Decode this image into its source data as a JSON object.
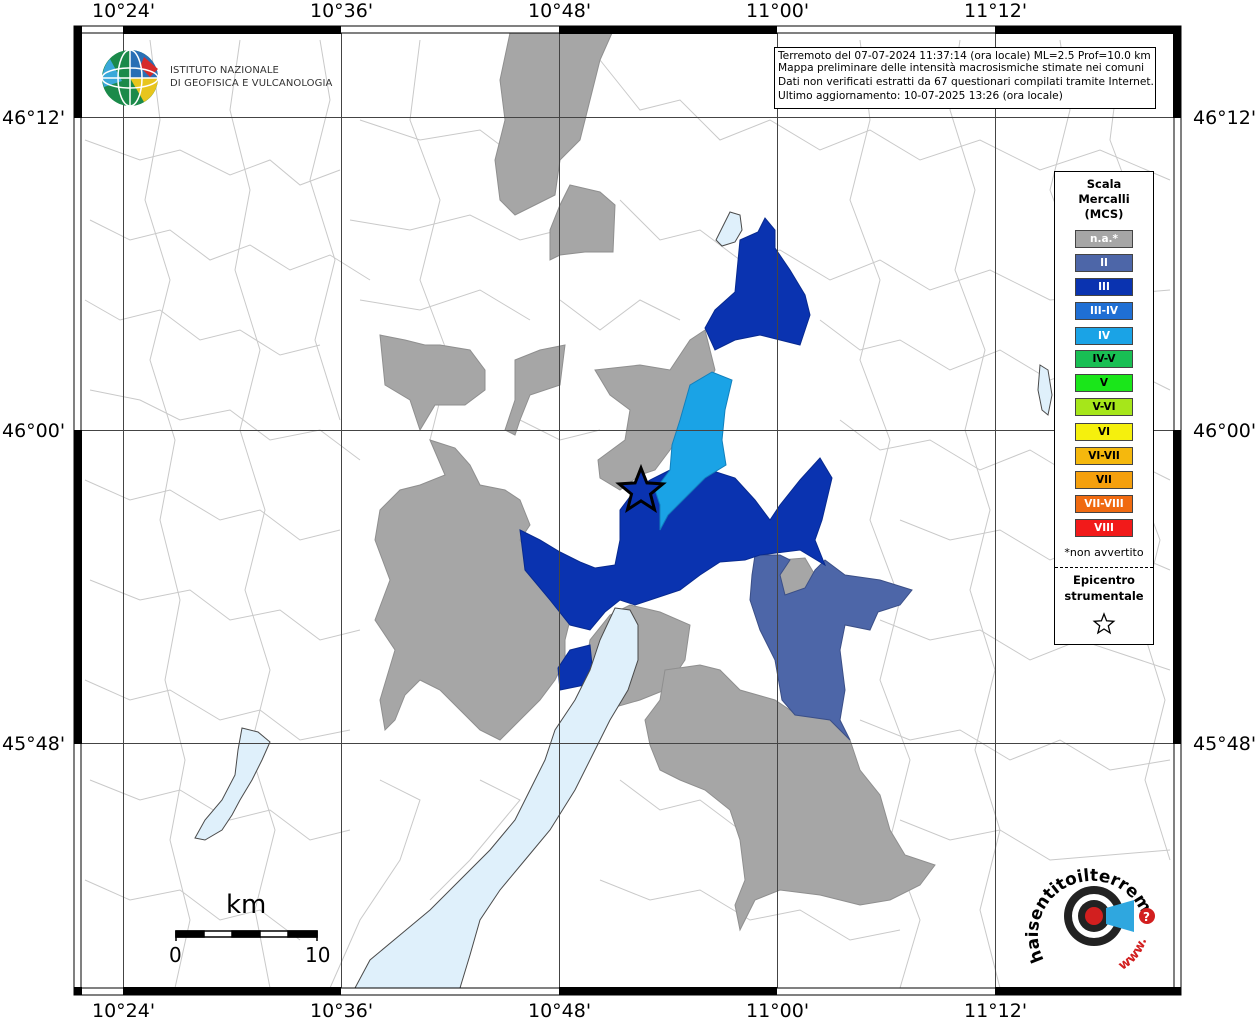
{
  "info": {
    "line1": "Terremoto del 07-07-2024 11:37:14 (ora locale) ML=2.5 Prof=10.0 km",
    "line2": "Mappa preliminare delle intensità macrosismiche stimate nei comuni",
    "line3": "Dati non verificati estratti da 67 questionari compilati tramite Internet.",
    "line4": "Ultimo aggiornamento: 10-07-2025 13:26 (ora locale)"
  },
  "institute": {
    "line1": "ISTITUTO NAZIONALE",
    "line2": "DI GEOFISICA E VULCANOLOGIA"
  },
  "axes": {
    "x_labels": [
      "10°24'",
      "10°36'",
      "10°48'",
      "11°00'",
      "11°12'"
    ],
    "y_labels": [
      "46°12'",
      "46°00'",
      "45°48'"
    ]
  },
  "legend": {
    "title_line1": "Scala",
    "title_line2": "Mercalli",
    "title_line3": "(MCS)",
    "items": [
      {
        "label": "n.a.*",
        "color": "#a6a6a6"
      },
      {
        "label": "II",
        "color": "#4d66a8"
      },
      {
        "label": "III",
        "color": "#0a33b0"
      },
      {
        "label": "III-IV",
        "color": "#1f6fd4"
      },
      {
        "label": "IV",
        "color": "#1aa3e6"
      },
      {
        "label": "IV-V",
        "color": "#19bf54"
      },
      {
        "label": "V",
        "color": "#1ae61a"
      },
      {
        "label": "V-VI",
        "color": "#a6e61a"
      },
      {
        "label": "VI",
        "color": "#f5f00d"
      },
      {
        "label": "VI-VII",
        "color": "#f5b80d"
      },
      {
        "label": "VII",
        "color": "#f5a00d"
      },
      {
        "label": "VII-VIII",
        "color": "#f06a10"
      },
      {
        "label": "VIII",
        "color": "#f21a1a"
      }
    ],
    "note": "*non avvertito",
    "epicenter_line1": "Epicentro",
    "epicenter_line2": "strumentale"
  },
  "scale_bar": {
    "unit": "km",
    "min": "0",
    "max": "10"
  },
  "hai_logo": {
    "text": "haisentitoilterremoto.it",
    "www": "www."
  },
  "colors": {
    "na": "#a6a6a6",
    "ii": "#4d66a8",
    "iii": "#0a33b0",
    "iv": "#1aa3e6",
    "lake": "#dff0fb"
  }
}
